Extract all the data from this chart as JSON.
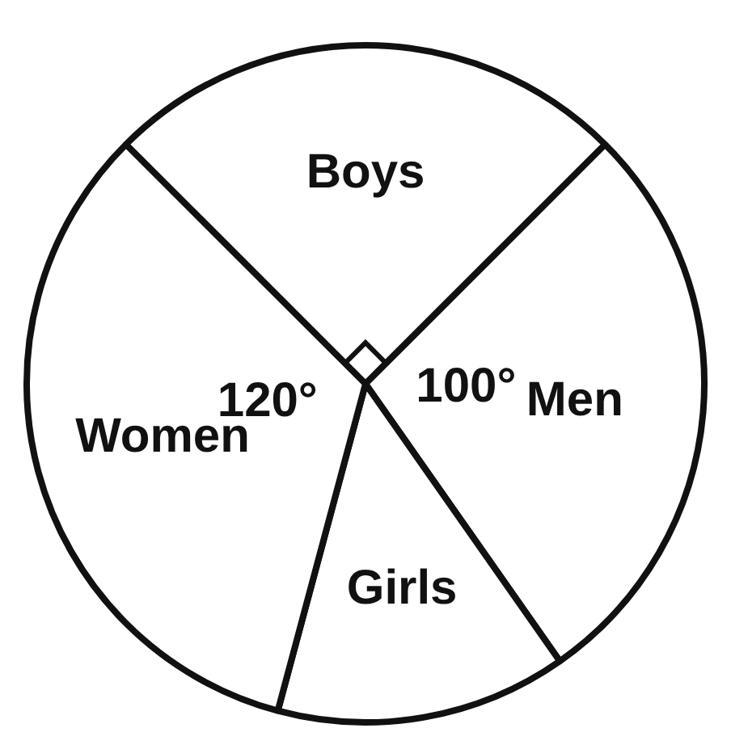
{
  "chart_data": {
    "type": "pie",
    "categories": [
      "Boys",
      "Men",
      "Girls",
      "Women"
    ],
    "values": [
      90,
      100,
      50,
      120
    ],
    "colors": [
      "#ffffff",
      "#ffffff",
      "#ffffff",
      "#ffffff"
    ],
    "value_labels": [
      null,
      "100°",
      null,
      "120°"
    ]
  }
}
